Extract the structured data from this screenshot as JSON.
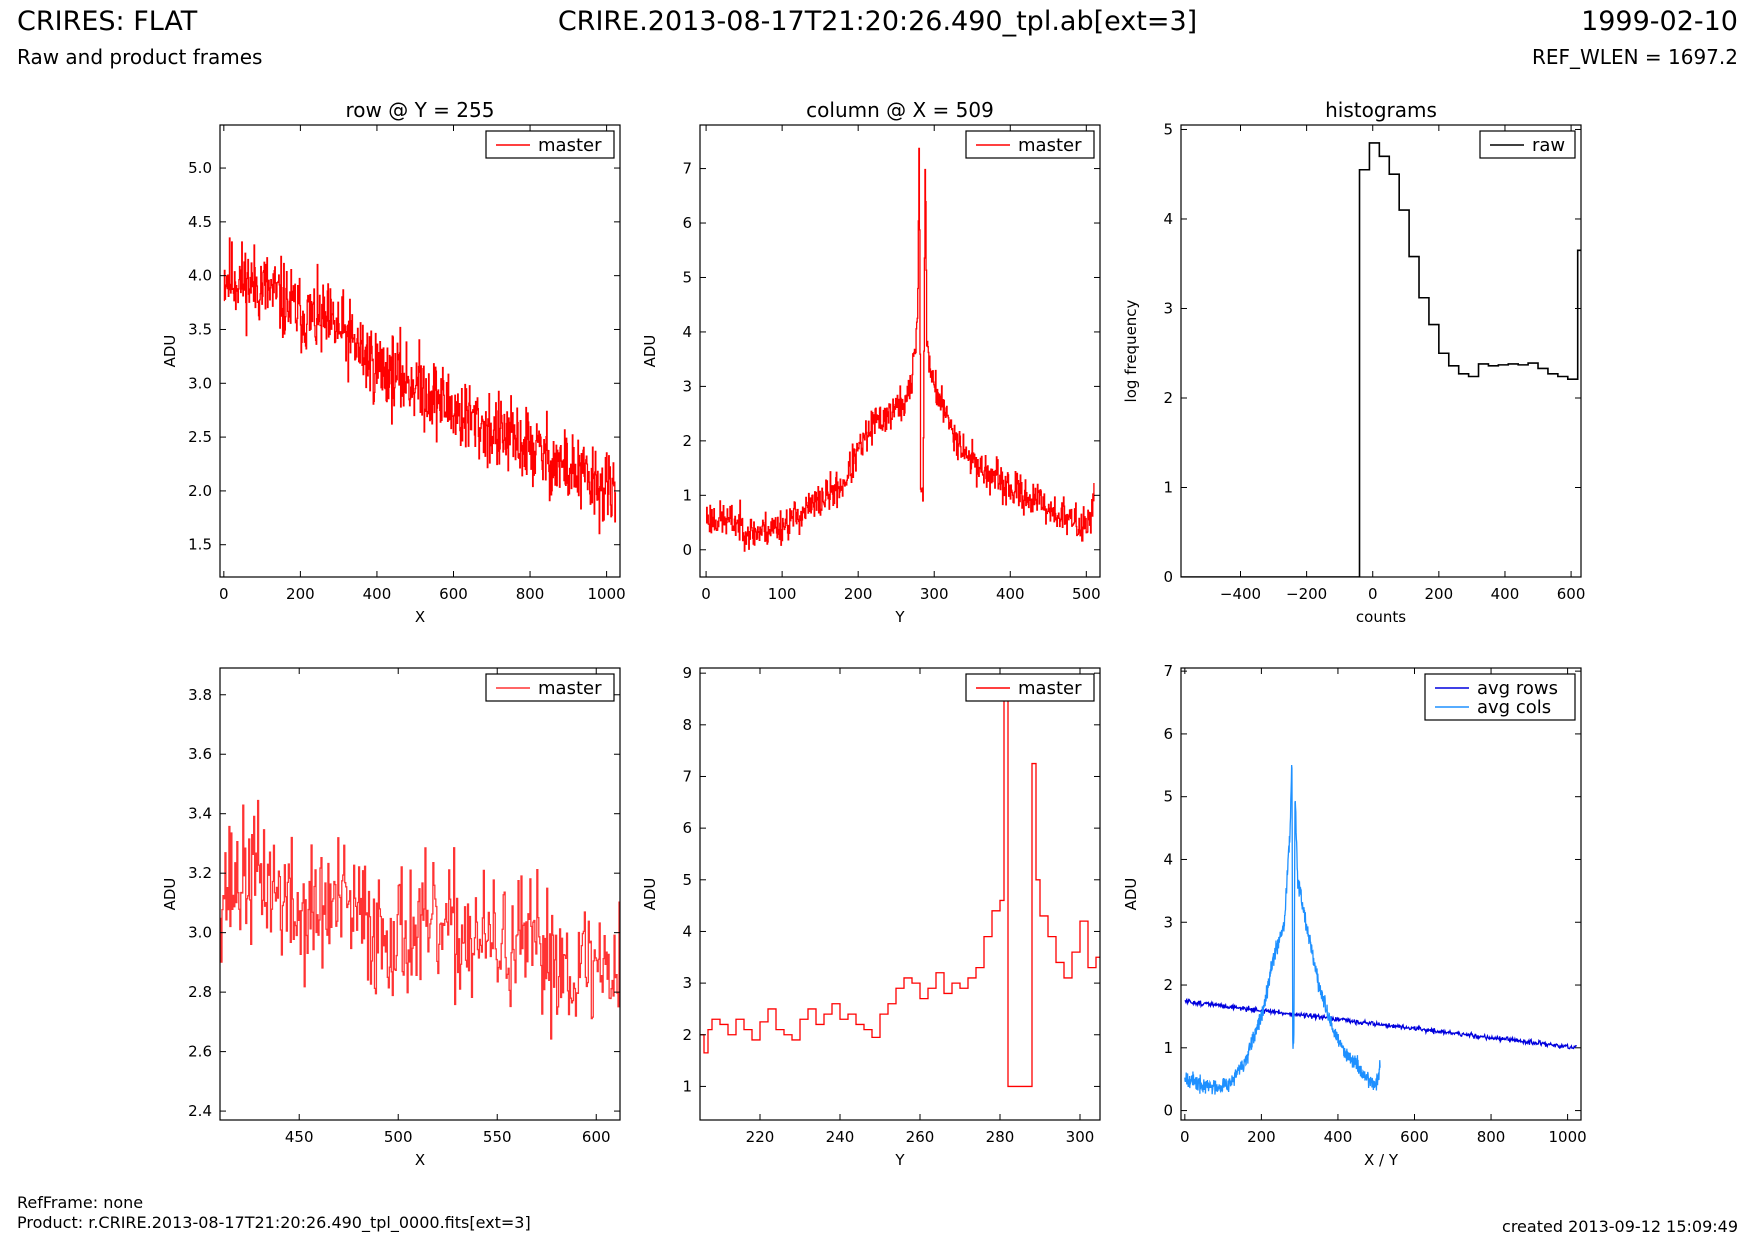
{
  "header": {
    "title": "CRIRES: FLAT",
    "subtitle": "Raw and product frames",
    "file": "CRIRE.2013-08-17T21:20:26.490_tpl.ab[ext=3]",
    "date": "1999-02-10",
    "ref_wlen": "REF_WLEN = 1697.2"
  },
  "footer": {
    "ref_frame": "RefFrame: none",
    "product": "Product: r.CRIRE.2013-08-17T21:20:26.490_tpl_0000.fits[ext=3]",
    "created": "created 2013-09-12 15:09:49"
  },
  "colors": {
    "red": "#ff0000",
    "red_light": "#ff3333",
    "black": "#000000",
    "blue": "#0000dd",
    "light_blue": "#1e90ff"
  },
  "chart_data": [
    {
      "id": "row",
      "type": "line",
      "title": "row @ Y = 255",
      "xlabel": "X",
      "ylabel": "ADU",
      "xlim": [
        -10,
        1035
      ],
      "ylim": [
        1.2,
        5.4
      ],
      "xticks": [
        0,
        200,
        400,
        600,
        800,
        1000
      ],
      "yticks": [
        1.5,
        2.0,
        2.5,
        3.0,
        3.5,
        4.0,
        4.5,
        5.0
      ],
      "ytick_decimals": 1,
      "legend": "top-right",
      "series": [
        {
          "name": "master",
          "color": "#ff0000",
          "style": "step",
          "noisy": true,
          "seed": 11,
          "x": [
            0,
            100,
            200,
            300,
            400,
            500,
            600,
            700,
            800,
            900,
            1000,
            1023
          ],
          "y": [
            4.0,
            3.9,
            3.65,
            3.5,
            3.15,
            3.0,
            2.75,
            2.55,
            2.4,
            2.2,
            2.0,
            1.95
          ],
          "noise": 0.28
        }
      ]
    },
    {
      "id": "column",
      "type": "line",
      "title": "column @ X = 509",
      "xlabel": "Y",
      "ylabel": "ADU",
      "xlim": [
        -8,
        518
      ],
      "ylim": [
        -0.5,
        7.8
      ],
      "xticks": [
        0,
        100,
        200,
        300,
        400,
        500
      ],
      "yticks": [
        0,
        1,
        2,
        3,
        4,
        5,
        6,
        7
      ],
      "ytick_decimals": 0,
      "legend": "top-right",
      "series": [
        {
          "name": "master",
          "color": "#ff0000",
          "style": "step",
          "noisy": true,
          "seed": 23,
          "x": [
            0,
            40,
            60,
            100,
            140,
            180,
            200,
            220,
            240,
            260,
            270,
            278,
            280,
            282,
            285,
            288,
            290,
            300,
            320,
            340,
            360,
            380,
            400,
            420,
            440,
            470,
            500,
            510
          ],
          "y": [
            0.6,
            0.5,
            0.3,
            0.45,
            0.8,
            1.2,
            1.8,
            2.3,
            2.5,
            2.7,
            3.0,
            4.3,
            7.8,
            1.0,
            1.0,
            7.3,
            3.7,
            3.0,
            2.3,
            1.8,
            1.5,
            1.3,
            1.1,
            1.0,
            0.85,
            0.6,
            0.4,
            1.0
          ],
          "noise": 0.25
        }
      ]
    },
    {
      "id": "histograms",
      "type": "line",
      "title": "histograms",
      "xlabel": "counts",
      "ylabel": "log frequency",
      "xlim": [
        -580,
        630
      ],
      "ylim": [
        0,
        5.05
      ],
      "xticks": [
        -400,
        -200,
        0,
        200,
        400,
        600
      ],
      "yticks": [
        0,
        1,
        2,
        3,
        4,
        5
      ],
      "ytick_decimals": 0,
      "legend": "top-right",
      "series": [
        {
          "name": "raw",
          "color": "#000000",
          "style": "hist",
          "edges": [
            -40,
            -10,
            20,
            50,
            80,
            110,
            140,
            170,
            200,
            230,
            260,
            290,
            320,
            350,
            380,
            410,
            440,
            470,
            500,
            530,
            560,
            590,
            620,
            660
          ],
          "heights": [
            4.55,
            4.85,
            4.7,
            4.5,
            4.1,
            3.58,
            3.12,
            2.82,
            2.5,
            2.36,
            2.27,
            2.24,
            2.38,
            2.36,
            2.37,
            2.38,
            2.37,
            2.39,
            2.33,
            2.27,
            2.24,
            2.21,
            3.65
          ]
        }
      ]
    },
    {
      "id": "row-zoom",
      "type": "line",
      "title": "",
      "xlabel": "X",
      "ylabel": "ADU",
      "xlim": [
        410,
        612
      ],
      "ylim": [
        2.37,
        3.89
      ],
      "xticks": [
        450,
        500,
        550,
        600
      ],
      "yticks": [
        2.4,
        2.6,
        2.8,
        3.0,
        3.2,
        3.4,
        3.6,
        3.8
      ],
      "ytick_decimals": 1,
      "legend": "top-right",
      "series": [
        {
          "name": "master",
          "color": "#ff3333",
          "style": "step",
          "noisy": true,
          "seed": 37,
          "x": [
            410,
            430,
            450,
            470,
            490,
            510,
            530,
            550,
            570,
            590,
            612
          ],
          "y": [
            3.15,
            3.2,
            3.05,
            3.1,
            3.0,
            3.0,
            3.0,
            2.95,
            2.95,
            2.88,
            2.9
          ],
          "noise": 0.17
        }
      ]
    },
    {
      "id": "column-zoom",
      "type": "line",
      "title": "",
      "xlabel": "Y",
      "ylabel": "ADU",
      "xlim": [
        205,
        305
      ],
      "ylim": [
        0.35,
        9.1
      ],
      "xticks": [
        220,
        240,
        260,
        280,
        300
      ],
      "yticks": [
        1,
        2,
        3,
        4,
        5,
        6,
        7,
        8,
        9
      ],
      "ytick_decimals": 0,
      "legend": "top-right",
      "series": [
        {
          "name": "master",
          "color": "#ff0000",
          "style": "step",
          "x": [
            205,
            206,
            207,
            208,
            210,
            212,
            214,
            216,
            218,
            220,
            222,
            224,
            226,
            228,
            230,
            232,
            234,
            236,
            238,
            240,
            242,
            244,
            246,
            248,
            250,
            252,
            254,
            256,
            258,
            260,
            262,
            264,
            266,
            268,
            270,
            272,
            274,
            276,
            278,
            280,
            281,
            282,
            288,
            289,
            290,
            292,
            294,
            296,
            298,
            300,
            302,
            304,
            305
          ],
          "y": [
            2.0,
            1.65,
            2.1,
            2.3,
            2.2,
            2.0,
            2.3,
            2.1,
            1.9,
            2.25,
            2.5,
            2.1,
            2.0,
            1.9,
            2.3,
            2.5,
            2.2,
            2.4,
            2.6,
            2.3,
            2.4,
            2.2,
            2.1,
            1.95,
            2.4,
            2.6,
            2.9,
            3.1,
            3.0,
            2.7,
            2.9,
            3.2,
            2.8,
            3.0,
            2.9,
            3.1,
            3.3,
            3.9,
            4.4,
            4.6,
            8.7,
            1.0,
            7.25,
            5.0,
            4.3,
            3.9,
            3.4,
            3.1,
            3.6,
            4.2,
            3.3,
            3.5,
            3.5
          ]
        }
      ]
    },
    {
      "id": "averages",
      "type": "line",
      "title": "",
      "xlabel": "X / Y",
      "ylabel": "ADU",
      "xlim": [
        -10,
        1035
      ],
      "ylim": [
        -0.15,
        7.05
      ],
      "xticks": [
        0,
        200,
        400,
        600,
        800,
        1000
      ],
      "yticks": [
        0,
        1,
        2,
        3,
        4,
        5,
        6,
        7
      ],
      "ytick_decimals": 0,
      "legend": "top-right",
      "series": [
        {
          "name": "avg rows",
          "color": "#0000dd",
          "style": "line",
          "noisy": true,
          "seed": 51,
          "x": [
            0,
            1023
          ],
          "y": [
            1.74,
            1.0
          ],
          "noise": 0.03
        },
        {
          "name": "avg cols",
          "color": "#1e90ff",
          "style": "line",
          "noisy": true,
          "seed": 67,
          "x": [
            0,
            40,
            80,
            120,
            160,
            200,
            230,
            260,
            275,
            280,
            282,
            285,
            288,
            295,
            320,
            350,
            380,
            410,
            440,
            470,
            500,
            510
          ],
          "y": [
            0.55,
            0.4,
            0.38,
            0.45,
            0.8,
            1.5,
            2.4,
            3.0,
            4.5,
            5.6,
            1.0,
            1.2,
            5.1,
            3.7,
            2.9,
            2.0,
            1.4,
            1.0,
            0.8,
            0.55,
            0.4,
            0.7
          ],
          "noise": 0.1
        }
      ]
    }
  ]
}
